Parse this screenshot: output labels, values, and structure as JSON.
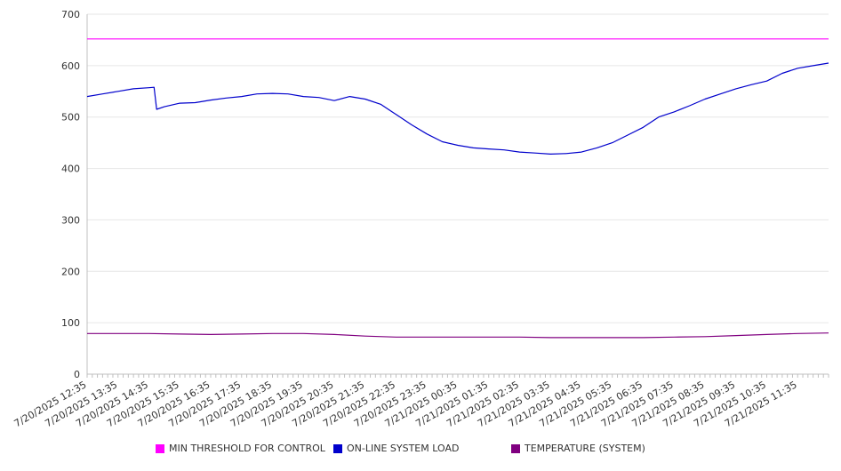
{
  "chart_data": {
    "type": "line",
    "title": "",
    "xlabel": "",
    "ylabel": "",
    "ylim": [
      0,
      700
    ],
    "yticks": [
      0,
      100,
      200,
      300,
      400,
      500,
      600,
      700
    ],
    "x_range": [
      "7/20/2025 12:35",
      "7/21/2025 12:35"
    ],
    "x_tick_labels": [
      "7/20/2025 12:35",
      "7/20/2025 13:35",
      "7/20/2025 14:35",
      "7/20/2025 15:35",
      "7/20/2025 16:35",
      "7/20/2025 17:35",
      "7/20/2025 18:35",
      "7/20/2025 19:35",
      "7/20/2025 20:35",
      "7/20/2025 21:35",
      "7/20/2025 22:35",
      "7/20/2025 23:35",
      "7/21/2025 00:35",
      "7/21/2025 01:35",
      "7/21/2025 02:35",
      "7/21/2025 03:35",
      "7/21/2025 04:35",
      "7/21/2025 05:35",
      "7/21/2025 06:35",
      "7/21/2025 07:35",
      "7/21/2025 08:35",
      "7/21/2025 09:35",
      "7/21/2025 10:35",
      "7/21/2025 11:35"
    ],
    "grid": true,
    "legend_position": "bottom",
    "series": [
      {
        "name": "MIN THRESHOLD FOR CONTROL",
        "color": "#ff00ff",
        "x": [
          "7/20/2025 12:35",
          "7/21/2025 12:35"
        ],
        "values": [
          652,
          652
        ]
      },
      {
        "name": "ON-LINE SYSTEM LOAD",
        "color": "#0000cc",
        "x": [
          "7/20/2025 12:35",
          "7/20/2025 13:05",
          "7/20/2025 13:35",
          "7/20/2025 14:05",
          "7/20/2025 14:35",
          "7/20/2025 14:45",
          "7/20/2025 14:50",
          "7/20/2025 15:05",
          "7/20/2025 15:35",
          "7/20/2025 16:05",
          "7/20/2025 16:35",
          "7/20/2025 17:05",
          "7/20/2025 17:35",
          "7/20/2025 18:05",
          "7/20/2025 18:35",
          "7/20/2025 19:05",
          "7/20/2025 19:35",
          "7/20/2025 20:05",
          "7/20/2025 20:35",
          "7/20/2025 21:05",
          "7/20/2025 21:35",
          "7/20/2025 22:05",
          "7/20/2025 22:35",
          "7/20/2025 23:05",
          "7/20/2025 23:35",
          "7/21/2025 00:05",
          "7/21/2025 00:35",
          "7/21/2025 01:05",
          "7/21/2025 01:35",
          "7/21/2025 02:05",
          "7/21/2025 02:35",
          "7/21/2025 03:05",
          "7/21/2025 03:35",
          "7/21/2025 04:05",
          "7/21/2025 04:35",
          "7/21/2025 05:05",
          "7/21/2025 05:35",
          "7/21/2025 06:05",
          "7/21/2025 06:35",
          "7/21/2025 07:05",
          "7/21/2025 07:35",
          "7/21/2025 08:05",
          "7/21/2025 08:35",
          "7/21/2025 09:05",
          "7/21/2025 09:35",
          "7/21/2025 10:05",
          "7/21/2025 10:35",
          "7/21/2025 11:05",
          "7/21/2025 11:35",
          "7/21/2025 12:05",
          "7/21/2025 12:35"
        ],
        "values": [
          540,
          545,
          550,
          555,
          557,
          558,
          515,
          520,
          527,
          528,
          533,
          537,
          540,
          545,
          546,
          545,
          540,
          538,
          532,
          540,
          535,
          525,
          505,
          485,
          467,
          452,
          445,
          440,
          438,
          436,
          432,
          430,
          428,
          429,
          432,
          440,
          450,
          465,
          480,
          500,
          510,
          522,
          535,
          545,
          555,
          563,
          570,
          585,
          595,
          600,
          605
        ]
      },
      {
        "name": "TEMPERATURE (SYSTEM)",
        "color": "#800080",
        "x": [
          "7/20/2025 12:35",
          "7/20/2025 14:35",
          "7/20/2025 15:35",
          "7/20/2025 16:35",
          "7/20/2025 17:35",
          "7/20/2025 18:35",
          "7/20/2025 19:35",
          "7/20/2025 20:35",
          "7/20/2025 21:35",
          "7/20/2025 22:35",
          "7/21/2025 00:35",
          "7/21/2025 02:35",
          "7/21/2025 03:35",
          "7/21/2025 05:35",
          "7/21/2025 06:35",
          "7/21/2025 07:35",
          "7/21/2025 08:35",
          "7/21/2025 09:35",
          "7/21/2025 10:35",
          "7/21/2025 11:35",
          "7/21/2025 12:35"
        ],
        "values": [
          79,
          79,
          78,
          77,
          78,
          79,
          79,
          77,
          74,
          72,
          72,
          72,
          71,
          71,
          71,
          72,
          73,
          75,
          77,
          79,
          80
        ]
      }
    ]
  }
}
